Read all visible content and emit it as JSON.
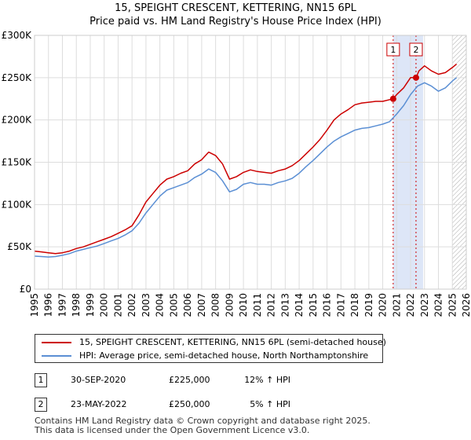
{
  "chart_data": {
    "type": "line",
    "title": "15, SPEIGHT CRESCENT, KETTERING, NN15 6PL",
    "subtitle": "Price paid vs. HM Land Registry's House Price Index (HPI)",
    "xlabel": "",
    "ylabel": "",
    "xlim": [
      1995,
      2026
    ],
    "ylim": [
      0,
      300000
    ],
    "y_ticks": [
      {
        "value": 0,
        "label": "£0"
      },
      {
        "value": 50000,
        "label": "£50K"
      },
      {
        "value": 100000,
        "label": "£100K"
      },
      {
        "value": 150000,
        "label": "£150K"
      },
      {
        "value": 200000,
        "label": "£200K"
      },
      {
        "value": 250000,
        "label": "£250K"
      },
      {
        "value": 300000,
        "label": "£300K"
      }
    ],
    "x_ticks": [
      "1995",
      "1996",
      "1997",
      "1998",
      "1999",
      "2000",
      "2001",
      "2002",
      "2003",
      "2004",
      "2005",
      "2006",
      "2007",
      "2008",
      "2009",
      "2010",
      "2011",
      "2012",
      "2013",
      "2014",
      "2015",
      "2016",
      "2017",
      "2018",
      "2019",
      "2020",
      "2021",
      "2022",
      "2023",
      "2024",
      "2025",
      "2026"
    ],
    "grid": true,
    "shaded_band": {
      "from": 2020.75,
      "to": 2022.9,
      "color": "#dde6f7"
    },
    "hatch_start": 2025.0,
    "colors": {
      "property": "#cc0000",
      "hpi": "#5b8fd4",
      "grid": "#dddddd",
      "marker_line": "#cc0000"
    },
    "series": [
      {
        "name": "15, SPEIGHT CRESCENT, KETTERING, NN15 6PL (semi-detached house)",
        "color": "#cc0000",
        "points": [
          [
            1995.0,
            45000
          ],
          [
            1995.5,
            44000
          ],
          [
            1996.0,
            43000
          ],
          [
            1996.5,
            42000
          ],
          [
            1997.0,
            43000
          ],
          [
            1997.5,
            45000
          ],
          [
            1998.0,
            48000
          ],
          [
            1998.5,
            50000
          ],
          [
            1999.0,
            53000
          ],
          [
            1999.5,
            56000
          ],
          [
            2000.0,
            59000
          ],
          [
            2000.5,
            62000
          ],
          [
            2001.0,
            66000
          ],
          [
            2001.5,
            70000
          ],
          [
            2002.0,
            75000
          ],
          [
            2002.5,
            88000
          ],
          [
            2003.0,
            103000
          ],
          [
            2003.5,
            113000
          ],
          [
            2004.0,
            123000
          ],
          [
            2004.5,
            130000
          ],
          [
            2005.0,
            133000
          ],
          [
            2005.5,
            137000
          ],
          [
            2006.0,
            140000
          ],
          [
            2006.5,
            148000
          ],
          [
            2007.0,
            153000
          ],
          [
            2007.5,
            162000
          ],
          [
            2008.0,
            158000
          ],
          [
            2008.5,
            148000
          ],
          [
            2009.0,
            130000
          ],
          [
            2009.5,
            133000
          ],
          [
            2010.0,
            138000
          ],
          [
            2010.5,
            141000
          ],
          [
            2011.0,
            139000
          ],
          [
            2011.5,
            138000
          ],
          [
            2012.0,
            137000
          ],
          [
            2012.5,
            140000
          ],
          [
            2013.0,
            142000
          ],
          [
            2013.5,
            146000
          ],
          [
            2014.0,
            152000
          ],
          [
            2014.5,
            160000
          ],
          [
            2015.0,
            168000
          ],
          [
            2015.5,
            177000
          ],
          [
            2016.0,
            188000
          ],
          [
            2016.5,
            200000
          ],
          [
            2017.0,
            207000
          ],
          [
            2017.5,
            212000
          ],
          [
            2018.0,
            218000
          ],
          [
            2018.5,
            220000
          ],
          [
            2019.0,
            221000
          ],
          [
            2019.5,
            222000
          ],
          [
            2020.0,
            222000
          ],
          [
            2020.5,
            224000
          ],
          [
            2020.75,
            225000
          ],
          [
            2021.0,
            230000
          ],
          [
            2021.5,
            238000
          ],
          [
            2022.0,
            250000
          ],
          [
            2022.39,
            250000
          ],
          [
            2022.6,
            258000
          ],
          [
            2023.0,
            264000
          ],
          [
            2023.5,
            258000
          ],
          [
            2024.0,
            254000
          ],
          [
            2024.5,
            256000
          ],
          [
            2025.0,
            262000
          ],
          [
            2025.3,
            266000
          ]
        ]
      },
      {
        "name": "HPI: Average price, semi-detached house, North Northamptonshire",
        "color": "#5b8fd4",
        "points": [
          [
            1995.0,
            39000
          ],
          [
            1995.5,
            38500
          ],
          [
            1996.0,
            38000
          ],
          [
            1996.5,
            38500
          ],
          [
            1997.0,
            40000
          ],
          [
            1997.5,
            42000
          ],
          [
            1998.0,
            45000
          ],
          [
            1998.5,
            47000
          ],
          [
            1999.0,
            49000
          ],
          [
            1999.5,
            51000
          ],
          [
            2000.0,
            54000
          ],
          [
            2000.5,
            57000
          ],
          [
            2001.0,
            60000
          ],
          [
            2001.5,
            64000
          ],
          [
            2002.0,
            69000
          ],
          [
            2002.5,
            78000
          ],
          [
            2003.0,
            90000
          ],
          [
            2003.5,
            100000
          ],
          [
            2004.0,
            110000
          ],
          [
            2004.5,
            117000
          ],
          [
            2005.0,
            120000
          ],
          [
            2005.5,
            123000
          ],
          [
            2006.0,
            126000
          ],
          [
            2006.5,
            132000
          ],
          [
            2007.0,
            136000
          ],
          [
            2007.5,
            142000
          ],
          [
            2008.0,
            138000
          ],
          [
            2008.5,
            128000
          ],
          [
            2009.0,
            115000
          ],
          [
            2009.5,
            118000
          ],
          [
            2010.0,
            124000
          ],
          [
            2010.5,
            126000
          ],
          [
            2011.0,
            124000
          ],
          [
            2011.5,
            124000
          ],
          [
            2012.0,
            123000
          ],
          [
            2012.5,
            126000
          ],
          [
            2013.0,
            128000
          ],
          [
            2013.5,
            131000
          ],
          [
            2014.0,
            137000
          ],
          [
            2014.5,
            145000
          ],
          [
            2015.0,
            152000
          ],
          [
            2015.5,
            160000
          ],
          [
            2016.0,
            168000
          ],
          [
            2016.5,
            175000
          ],
          [
            2017.0,
            180000
          ],
          [
            2017.5,
            184000
          ],
          [
            2018.0,
            188000
          ],
          [
            2018.5,
            190000
          ],
          [
            2019.0,
            191000
          ],
          [
            2019.5,
            193000
          ],
          [
            2020.0,
            195000
          ],
          [
            2020.5,
            198000
          ],
          [
            2021.0,
            207000
          ],
          [
            2021.5,
            217000
          ],
          [
            2022.0,
            230000
          ],
          [
            2022.5,
            240000
          ],
          [
            2023.0,
            244000
          ],
          [
            2023.5,
            240000
          ],
          [
            2024.0,
            234000
          ],
          [
            2024.5,
            238000
          ],
          [
            2025.0,
            246000
          ],
          [
            2025.3,
            250000
          ]
        ]
      }
    ],
    "sales": [
      {
        "num": "1",
        "x": 2020.75,
        "y": 225000,
        "date": "30-SEP-2020",
        "price": "£225,000",
        "hpi": "12% ↑ HPI"
      },
      {
        "num": "2",
        "x": 2022.39,
        "y": 250000,
        "date": "23-MAY-2022",
        "price": "£250,000",
        "hpi": "5% ↑ HPI"
      }
    ]
  },
  "legend": {
    "property_label": "15, SPEIGHT CRESCENT, KETTERING, NN15 6PL (semi-detached house)",
    "hpi_label": "HPI: Average price, semi-detached house, North Northamptonshire"
  },
  "footer": {
    "line1": "Contains HM Land Registry data © Crown copyright and database right 2025.",
    "line2": "This data is licensed under the Open Government Licence v3.0."
  }
}
